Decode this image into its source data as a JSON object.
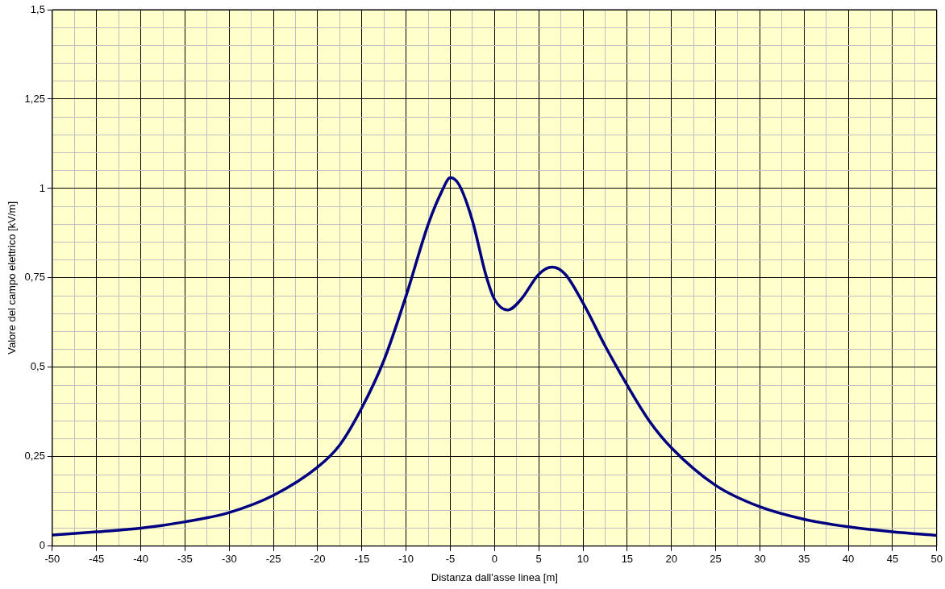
{
  "chart_data": {
    "type": "line",
    "xlabel": "Distanza dall'asse linea [m]",
    "ylabel": "Valore del campo elettrico [kV/m]",
    "x": [
      -50,
      -45,
      -40,
      -35,
      -30,
      -25,
      -20,
      -17.5,
      -15,
      -12.5,
      -10,
      -7.5,
      -6,
      -5,
      -4,
      -2.5,
      -1,
      0,
      1.5,
      3,
      5,
      6.5,
      8,
      10,
      12.5,
      15,
      17.5,
      20,
      25,
      30,
      35,
      40,
      45,
      50
    ],
    "series": [
      {
        "color": "#000080",
        "values": [
          0.031,
          0.04,
          0.05,
          0.068,
          0.094,
          0.142,
          0.221,
          0.283,
          0.387,
          0.52,
          0.7,
          0.9,
          0.99,
          1.03,
          1.01,
          0.91,
          0.76,
          0.69,
          0.66,
          0.69,
          0.76,
          0.78,
          0.76,
          0.68,
          0.56,
          0.45,
          0.35,
          0.275,
          0.17,
          0.11,
          0.075,
          0.054,
          0.04,
          0.03
        ]
      }
    ],
    "xlim": [
      -50,
      50
    ],
    "xticks": [
      -50,
      {
        "value": -47.5,
        "label": null
      },
      -45,
      {
        "value": -42.5,
        "label": null
      },
      -40,
      {
        "value": -37.5,
        "label": null
      },
      -35,
      {
        "value": -32.5,
        "label": null
      },
      -30,
      {
        "value": -27.5,
        "label": null
      },
      -25,
      {
        "value": -22.5,
        "label": null
      },
      -20,
      {
        "value": -17.5,
        "label": null
      },
      -15,
      {
        "value": -12.5,
        "label": null
      },
      -10,
      {
        "value": -7.5,
        "label": null
      },
      -5,
      {
        "value": -2.5,
        "label": null
      },
      0,
      {
        "value": 2.5,
        "label": null
      },
      5,
      {
        "value": 7.5,
        "label": null
      },
      10,
      {
        "value": 12.5,
        "label": null
      },
      15,
      {
        "value": 17.5,
        "label": null
      },
      20,
      {
        "value": 22.5,
        "label": null
      },
      25,
      {
        "value": 27.5,
        "label": null
      },
      30,
      {
        "value": 32.5,
        "label": null
      },
      35,
      {
        "value": 37.5,
        "label": null
      },
      40,
      {
        "value": 42.5,
        "label": null
      },
      45,
      {
        "value": 47.5,
        "label": null
      },
      50
    ],
    "ylim": [
      0,
      1.5
    ],
    "yticks": [
      {
        "value": 0,
        "label": "0"
      },
      {
        "value": 0.05,
        "label": null
      },
      {
        "value": 0.1,
        "label": null
      },
      {
        "value": 0.15,
        "label": null
      },
      {
        "value": 0.2,
        "label": null
      },
      {
        "value": 0.25,
        "label": "0,25"
      },
      {
        "value": 0.3,
        "label": null
      },
      {
        "value": 0.35,
        "label": null
      },
      {
        "value": 0.4,
        "label": null
      },
      {
        "value": 0.45,
        "label": null
      },
      {
        "value": 0.5,
        "label": "0,5"
      },
      {
        "value": 0.55,
        "label": null
      },
      {
        "value": 0.6,
        "label": null
      },
      {
        "value": 0.65,
        "label": null
      },
      {
        "value": 0.7,
        "label": null
      },
      {
        "value": 0.75,
        "label": "0,75"
      },
      {
        "value": 0.8,
        "label": null
      },
      {
        "value": 0.85,
        "label": null
      },
      {
        "value": 0.9,
        "label": null
      },
      {
        "value": 0.95,
        "label": null
      },
      {
        "value": 1,
        "label": "1"
      },
      {
        "value": 1.05,
        "label": null
      },
      {
        "value": 1.1,
        "label": null
      },
      {
        "value": 1.15,
        "label": null
      },
      {
        "value": 1.2,
        "label": null
      },
      {
        "value": 1.25,
        "label": "1,25"
      },
      {
        "value": 1.3,
        "label": null
      },
      {
        "value": 1.35,
        "label": null
      },
      {
        "value": 1.4,
        "label": null
      },
      {
        "value": 1.45,
        "label": null
      },
      {
        "value": 1.5,
        "label": "1,5"
      }
    ],
    "grid": true,
    "marker": "none",
    "line_style": "solid",
    "legend": false
  }
}
